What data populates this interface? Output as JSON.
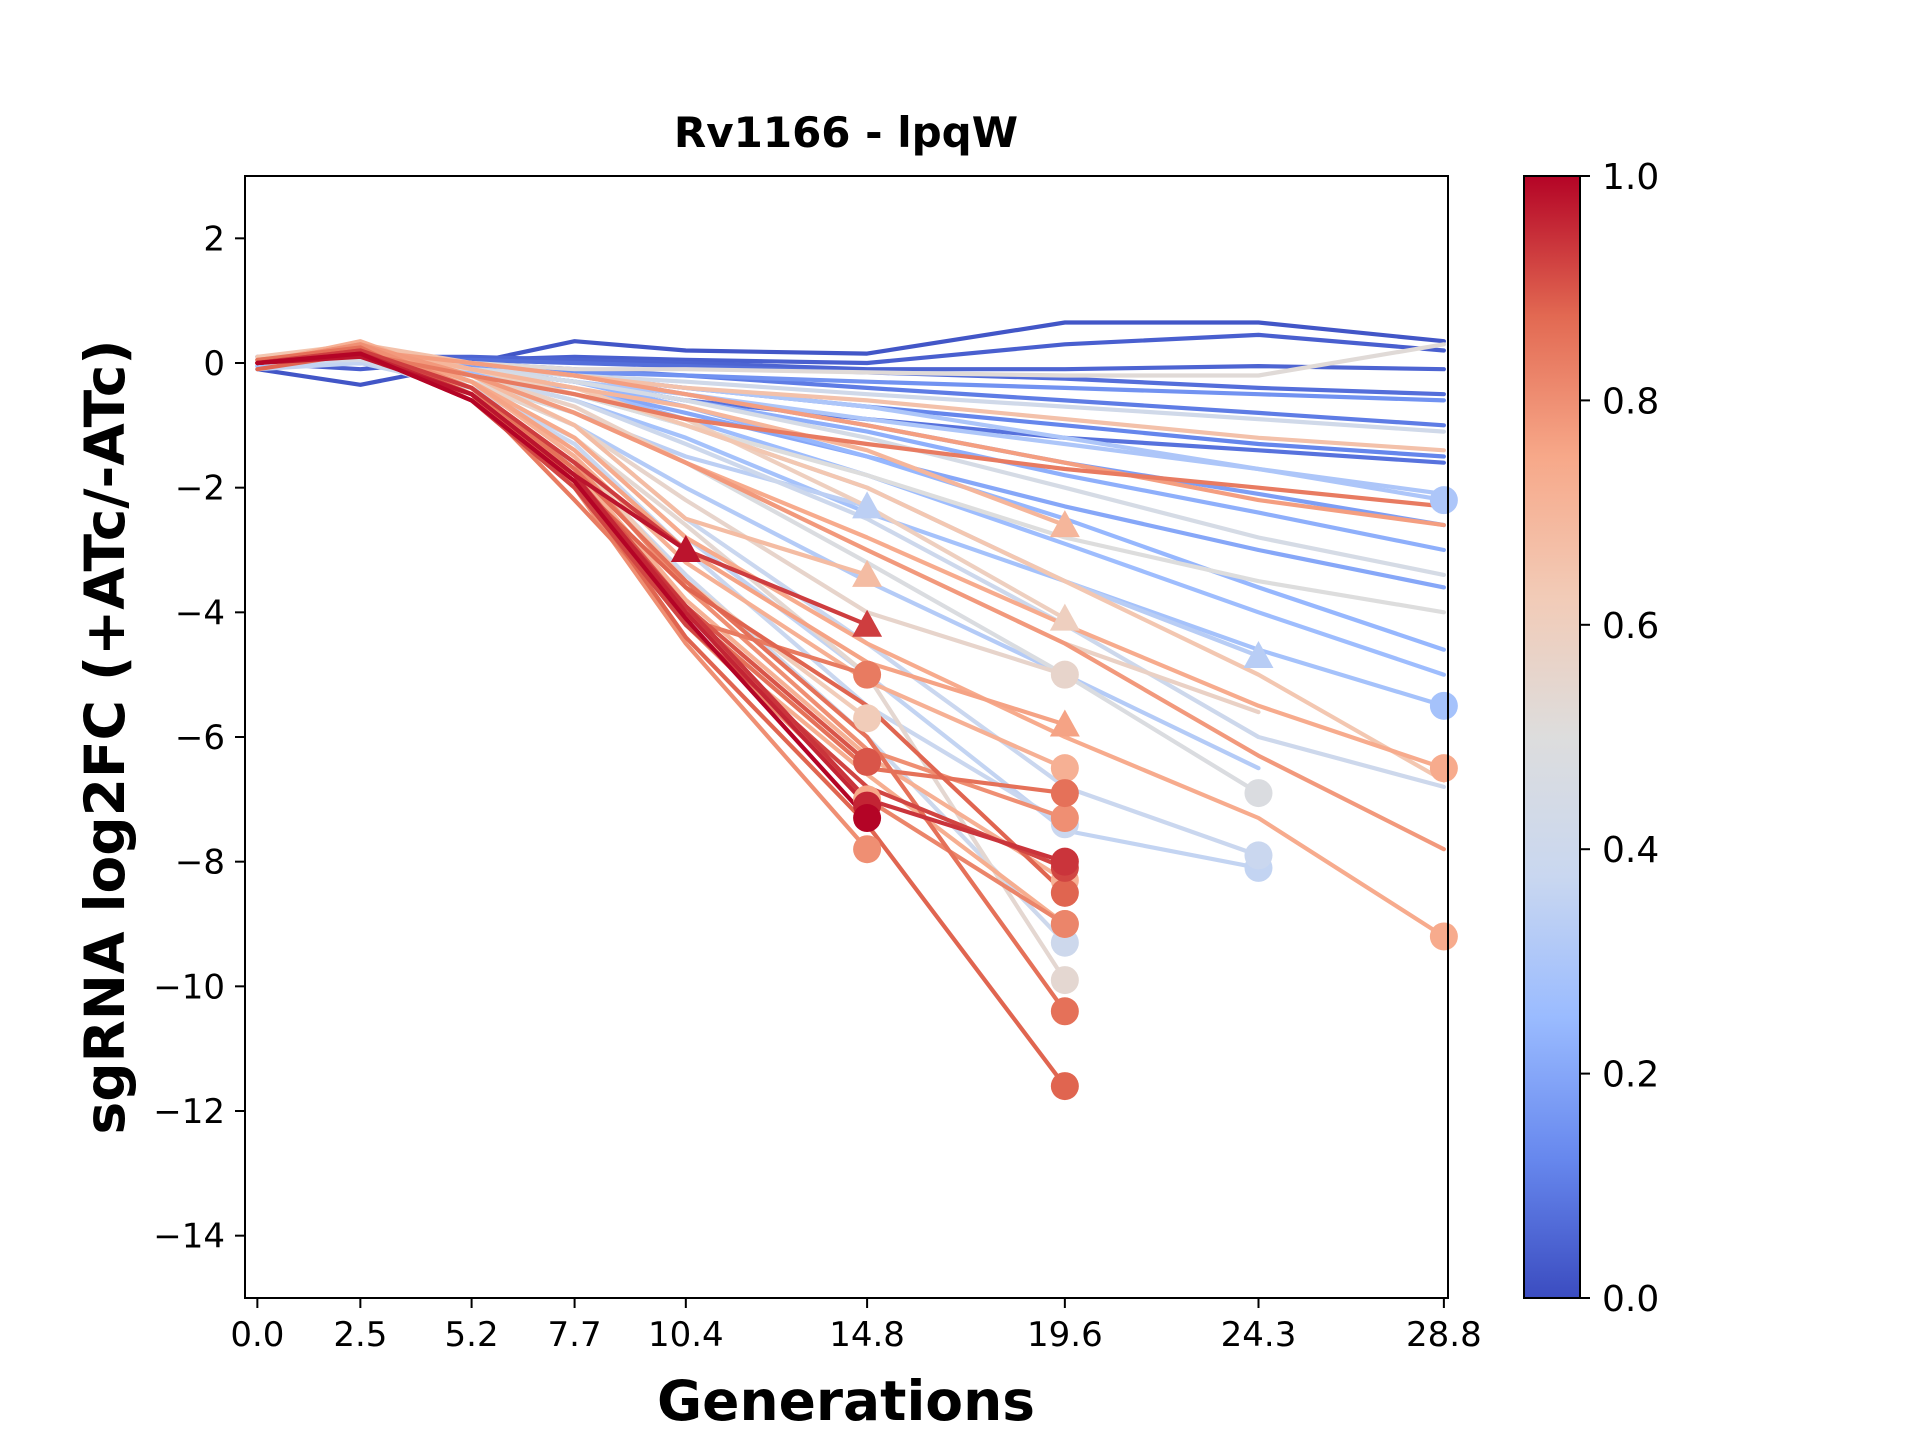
{
  "chart_data": {
    "type": "line",
    "title": "Rv1166 - lpqW",
    "xlabel": "Generations",
    "ylabel": "sgRNA log2FC (+ATc/-ATc)",
    "x_ticks": [
      0.0,
      2.5,
      5.2,
      7.7,
      10.4,
      14.8,
      19.6,
      24.3,
      28.8
    ],
    "x_tick_labels": [
      "0.0",
      "2.5",
      "5.2",
      "7.7",
      "10.4",
      "14.8",
      "19.6",
      "24.3",
      "28.8"
    ],
    "xlim": [
      -0.3,
      28.9
    ],
    "ylim": [
      -15,
      3
    ],
    "y_ticks": [
      2,
      0,
      -2,
      -4,
      -6,
      -8,
      -10,
      -12,
      -14
    ],
    "y_tick_labels": [
      "2",
      "0",
      "−2",
      "−4",
      "−6",
      "−8",
      "−10",
      "−12",
      "−14"
    ],
    "grid": false,
    "colormap": "coolwarm",
    "colorbar": {
      "range": [
        0,
        1
      ],
      "ticks": [
        0.0,
        0.2,
        0.4,
        0.6,
        0.8,
        1.0
      ],
      "tick_labels": [
        "0.0",
        "0.2",
        "0.4",
        "0.6",
        "0.8",
        "1.0"
      ],
      "stops": [
        "#3b4cc0",
        "#6788ee",
        "#9abbff",
        "#c9d7f0",
        "#dddddd",
        "#f2cbb7",
        "#f7a889",
        "#e26952",
        "#b40426"
      ]
    },
    "markers": {
      "circle": "last point",
      "triangle": "last point (alternate)"
    },
    "series": [
      {
        "c": 0.02,
        "y": [
          -0.1,
          -0.35,
          0.0,
          0.35,
          0.2,
          0.15,
          0.65,
          0.65,
          0.35
        ]
      },
      {
        "c": 0.04,
        "y": [
          0.0,
          -0.1,
          0.05,
          0.1,
          0.05,
          0.0,
          0.3,
          0.45,
          0.2
        ]
      },
      {
        "c": 0.05,
        "y": [
          0.05,
          0.1,
          0.1,
          0.05,
          0.0,
          -0.1,
          -0.1,
          -0.05,
          -0.1
        ]
      },
      {
        "c": 0.07,
        "y": [
          0.1,
          0.05,
          0.05,
          0.0,
          -0.05,
          -0.15,
          -0.25,
          -0.4,
          -0.5
        ]
      },
      {
        "c": 0.08,
        "y": [
          -0.05,
          0.0,
          -0.1,
          -0.3,
          -0.6,
          -0.9,
          -1.2,
          -1.4,
          -1.6
        ]
      },
      {
        "c": 0.1,
        "y": [
          0.0,
          0.05,
          0.0,
          -0.1,
          -0.2,
          -0.4,
          -0.6,
          -0.8,
          -1.0
        ]
      },
      {
        "c": 0.12,
        "y": [
          0.05,
          0.1,
          -0.05,
          -0.2,
          -0.4,
          -0.7,
          -1.0,
          -1.3,
          -1.5
        ]
      },
      {
        "c": 0.15,
        "y": [
          0.0,
          0.0,
          -0.1,
          -0.15,
          -0.2,
          -0.3,
          -0.4,
          -0.5,
          -0.6
        ]
      },
      {
        "c": 0.18,
        "y": [
          0.1,
          0.05,
          -0.05,
          -0.2,
          -0.5,
          -1.0,
          -1.6,
          -2.1,
          -2.6
        ]
      },
      {
        "c": 0.2,
        "y": [
          0.0,
          0.05,
          -0.2,
          -0.4,
          -0.8,
          -1.5,
          -2.3,
          -3.0,
          -3.6
        ]
      },
      {
        "c": 0.22,
        "y": [
          0.05,
          0.0,
          -0.1,
          -0.3,
          -0.6,
          -1.1,
          -1.8,
          -2.4,
          -3.0
        ]
      },
      {
        "c": 0.24,
        "y": [
          0.0,
          0.1,
          -0.1,
          -0.3,
          -0.7,
          -1.5,
          -2.5,
          -3.6,
          -4.6
        ]
      },
      {
        "c": 0.26,
        "y": [
          -0.05,
          0.0,
          -0.15,
          -0.4,
          -0.9,
          -1.8,
          -2.9,
          -4.0,
          -5.0
        ]
      },
      {
        "c": 0.28,
        "y": [
          0.0,
          0.05,
          -0.2,
          -0.6,
          -1.2,
          -2.4,
          -3.5,
          -4.6,
          -5.5
        ],
        "marker": "circle"
      },
      {
        "c": 0.3,
        "y": [
          0.1,
          0.05,
          -0.1,
          -0.3,
          -0.5,
          -0.9,
          -1.3,
          -1.7,
          -2.1
        ]
      },
      {
        "c": 0.3,
        "y": [
          0.05,
          0.0,
          -0.1,
          -0.2,
          -0.4,
          -0.7,
          -1.2,
          -1.7,
          -2.2
        ],
        "marker": "circle"
      },
      {
        "c": 0.32,
        "y": [
          0.0,
          0.1,
          -0.3,
          -1.0,
          -2.0,
          -3.5,
          -5.0,
          -6.5
        ]
      },
      {
        "c": 0.33,
        "y": [
          0.0,
          0.0,
          -0.2,
          -0.5,
          -1.0,
          -2.0,
          -3.5,
          -4.7
        ],
        "marker": "triangle"
      },
      {
        "c": 0.34,
        "y": [
          0.05,
          0.05,
          -0.3,
          -0.8,
          -1.5,
          -2.3
        ],
        "marker": "triangle"
      },
      {
        "c": 0.36,
        "y": [
          -0.1,
          0.0,
          -0.4,
          -1.2,
          -2.8,
          -5.0,
          -7.5,
          -8.1
        ],
        "marker": "circle"
      },
      {
        "c": 0.38,
        "y": [
          0.0,
          0.05,
          -0.4,
          -1.3,
          -3.0,
          -5.5,
          -7.4
        ],
        "marker": "circle"
      },
      {
        "c": 0.38,
        "y": [
          0.0,
          0.1,
          -0.3,
          -1.0,
          -2.5,
          -4.5,
          -6.8,
          -7.9
        ],
        "marker": "circle"
      },
      {
        "c": 0.4,
        "y": [
          0.0,
          0.05,
          -0.5,
          -1.6,
          -3.4,
          -6.0,
          -9.3
        ],
        "marker": "circle"
      },
      {
        "c": 0.4,
        "y": [
          0.05,
          0.1,
          -0.2,
          -0.6,
          -1.3,
          -2.5,
          -4.2,
          -6.0,
          -6.8
        ]
      },
      {
        "c": 0.42,
        "y": [
          0.0,
          0.1,
          -0.1,
          -0.2,
          -0.3,
          -0.5,
          -0.7,
          -0.9,
          -1.1
        ]
      },
      {
        "c": 0.45,
        "y": [
          0.1,
          0.05,
          -0.1,
          -0.3,
          -0.6,
          -1.2,
          -2.0,
          -2.8,
          -3.4
        ]
      },
      {
        "c": 0.48,
        "y": [
          0.0,
          0.1,
          -0.3,
          -0.8,
          -1.6,
          -3.2,
          -5.0,
          -6.9
        ],
        "marker": "circle"
      },
      {
        "c": 0.5,
        "y": [
          0.0,
          0.1,
          -0.2,
          -0.5,
          -1.0,
          -1.8,
          -2.8,
          -3.5,
          -4.0
        ]
      },
      {
        "c": 0.52,
        "y": [
          0.05,
          0.15,
          0.0,
          -0.1,
          -0.1,
          -0.15,
          -0.2,
          -0.2,
          0.3
        ]
      },
      {
        "c": 0.54,
        "y": [
          0.0,
          0.2,
          -0.3,
          -1.2,
          -2.6,
          -5.0,
          -9.9
        ],
        "marker": "circle"
      },
      {
        "c": 0.56,
        "y": [
          0.0,
          0.15,
          -0.3,
          -1.0,
          -2.2,
          -4.0,
          -5.0
        ],
        "marker": "circle"
      },
      {
        "c": 0.58,
        "y": [
          0.05,
          0.2,
          -0.2,
          -0.7,
          -1.6,
          -3.0,
          -4.5,
          -5.6
        ]
      },
      {
        "c": 0.6,
        "y": [
          0.0,
          0.2,
          -0.1,
          -0.5,
          -0.9,
          -2.3,
          -4.1
        ],
        "marker": "triangle"
      },
      {
        "c": 0.62,
        "y": [
          0.0,
          0.25,
          -0.3,
          -1.5,
          -3.5,
          -5.7
        ],
        "marker": "circle"
      },
      {
        "c": 0.64,
        "y": [
          0.1,
          0.3,
          -0.1,
          -0.4,
          -1.0,
          -2.0,
          -3.5,
          -5.0,
          -6.7
        ]
      },
      {
        "c": 0.66,
        "y": [
          0.0,
          0.3,
          0.0,
          -0.2,
          -0.4,
          -0.6,
          -0.9,
          -1.2,
          -1.4
        ]
      },
      {
        "c": 0.68,
        "y": [
          0.0,
          0.3,
          -0.2,
          -1.0,
          -2.5,
          -3.4
        ],
        "marker": "triangle"
      },
      {
        "c": 0.7,
        "y": [
          0.05,
          0.25,
          -0.1,
          -0.4,
          -0.7,
          -1.4,
          -2.6
        ],
        "marker": "triangle"
      },
      {
        "c": 0.72,
        "y": [
          0.0,
          0.3,
          -0.4,
          -1.7,
          -3.8,
          -6.3,
          -8.3
        ],
        "marker": "circle"
      },
      {
        "c": 0.72,
        "y": [
          0.0,
          0.35,
          -0.3,
          -1.5,
          -3.2,
          -5.1,
          -6.5
        ],
        "marker": "circle"
      },
      {
        "c": 0.73,
        "y": [
          0.0,
          0.3,
          -0.5,
          -2.0,
          -4.2,
          -6.6,
          -9.0
        ],
        "marker": "circle"
      },
      {
        "c": 0.74,
        "y": [
          0.05,
          0.2,
          -0.2,
          -0.8,
          -1.6,
          -2.8,
          -4.2,
          -5.5,
          -6.5
        ],
        "marker": "circle"
      },
      {
        "c": 0.74,
        "y": [
          0.0,
          0.3,
          -0.3,
          -1.2,
          -2.8,
          -4.5,
          -6.0,
          -7.3,
          -9.2
        ],
        "marker": "circle"
      },
      {
        "c": 0.75,
        "y": [
          0.0,
          0.25,
          -0.4,
          -1.8,
          -4.0,
          -7.0
        ],
        "marker": "circle"
      },
      {
        "c": 0.76,
        "y": [
          0.0,
          0.3,
          -0.3,
          -1.4,
          -3.0,
          -4.8,
          -5.8
        ],
        "marker": "triangle"
      },
      {
        "c": 0.77,
        "y": [
          0.05,
          0.2,
          0.0,
          -0.2,
          -0.5,
          -1.0,
          -1.6,
          -2.2,
          -2.6
        ]
      },
      {
        "c": 0.78,
        "y": [
          0.0,
          0.3,
          -0.2,
          -0.8,
          -1.6,
          -3.0,
          -4.5,
          -6.3,
          -7.8
        ]
      },
      {
        "c": 0.8,
        "y": [
          0.0,
          0.25,
          -0.5,
          -2.0,
          -4.5,
          -7.8
        ],
        "marker": "circle"
      },
      {
        "c": 0.8,
        "y": [
          0.0,
          0.3,
          -0.4,
          -1.6,
          -3.6,
          -6.2,
          -7.3
        ],
        "marker": "circle"
      },
      {
        "c": 0.82,
        "y": [
          0.0,
          0.2,
          -0.4,
          -1.8,
          -4.2,
          -7.0,
          -9.0
        ],
        "marker": "circle"
      },
      {
        "c": 0.84,
        "y": [
          0.0,
          0.2,
          -0.5,
          -2.2,
          -4.1,
          -5.0
        ],
        "marker": "circle"
      },
      {
        "c": 0.84,
        "y": [
          0.0,
          0.15,
          -0.2,
          -0.5,
          -0.9,
          -1.3,
          -1.7,
          -2.0,
          -2.3
        ]
      },
      {
        "c": 0.86,
        "y": [
          0.05,
          0.25,
          -0.6,
          -2.0,
          -4.0,
          -6.5,
          -6.9
        ],
        "marker": "circle"
      },
      {
        "c": 0.86,
        "y": [
          0.0,
          0.2,
          -0.4,
          -1.7,
          -3.5,
          -6.0,
          -10.4
        ],
        "marker": "circle"
      },
      {
        "c": 0.88,
        "y": [
          0.0,
          0.2,
          -0.5,
          -1.9,
          -4.4,
          -7.4,
          -11.6
        ],
        "marker": "circle"
      },
      {
        "c": 0.88,
        "y": [
          -0.1,
          0.15,
          -0.5,
          -1.9,
          -3.6,
          -5.5,
          -8.5
        ],
        "marker": "circle"
      },
      {
        "c": 0.9,
        "y": [
          0.0,
          0.2,
          -0.5,
          -1.8,
          -3.9,
          -6.4
        ],
        "marker": "circle"
      },
      {
        "c": 0.92,
        "y": [
          0.0,
          0.15,
          -0.6,
          -2.0,
          -4.2,
          -6.8,
          -8.1
        ],
        "marker": "circle"
      },
      {
        "c": 0.93,
        "y": [
          0.0,
          0.2,
          -0.4,
          -1.6,
          -3.0,
          -4.2
        ],
        "marker": "triangle"
      },
      {
        "c": 0.94,
        "y": [
          0.0,
          0.15,
          -0.6,
          -1.9,
          -3.9,
          -7.0,
          -8.0
        ],
        "marker": "circle"
      },
      {
        "c": 0.96,
        "y": [
          0.0,
          0.15,
          -0.5,
          -1.8,
          -4.0,
          -7.1
        ],
        "marker": "circle"
      },
      {
        "c": 0.98,
        "y": [
          0.0,
          0.1,
          -0.5,
          -1.8,
          -3.0
        ],
        "marker": "triangle"
      },
      {
        "c": 1.0,
        "y": [
          0.0,
          0.15,
          -0.6,
          -1.9,
          -4.1,
          -7.3
        ],
        "marker": "circle"
      }
    ]
  }
}
